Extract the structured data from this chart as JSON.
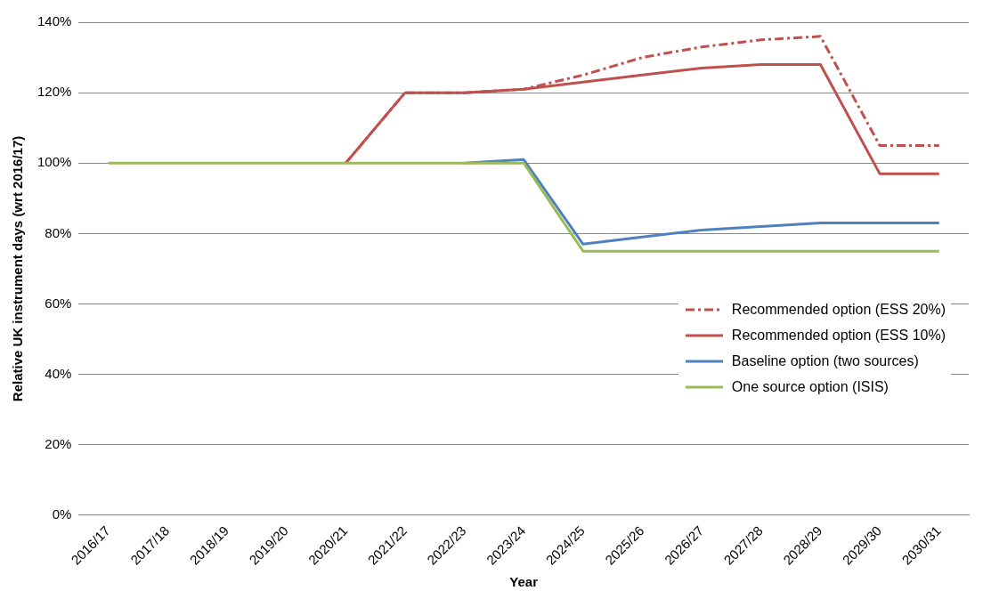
{
  "chart_data": {
    "type": "line",
    "xlabel": "Year",
    "ylabel": "Relative UK instrument days (wrt 2016/17)",
    "categories": [
      "2016/17",
      "2017/18",
      "2018/19",
      "2019/20",
      "2020/21",
      "2021/22",
      "2022/23",
      "2023/24",
      "2024/25",
      "2025/26",
      "2026/27",
      "2027/28",
      "2028/29",
      "2029/30",
      "2030/31"
    ],
    "series": [
      {
        "name": "Recommended option (ESS 20%)",
        "color": "#c0504d",
        "line_style": "dashed",
        "values": [
          null,
          null,
          null,
          null,
          100,
          120,
          120,
          121,
          125,
          130,
          133,
          135,
          136,
          105,
          105
        ]
      },
      {
        "name": "Recommended option (ESS 10%)",
        "color": "#c0504d",
        "values": [
          null,
          null,
          null,
          null,
          100,
          120,
          120,
          121,
          123,
          125,
          127,
          128,
          128,
          97,
          97
        ]
      },
      {
        "name": "Baseline option (two sources)",
        "color": "#4f81bd",
        "values": [
          null,
          null,
          null,
          null,
          null,
          null,
          100,
          101,
          77,
          79,
          81,
          82,
          83,
          83,
          83
        ]
      },
      {
        "name": "One source option (ISIS)",
        "color": "#9bbb59",
        "values": [
          100,
          100,
          100,
          100,
          100,
          100,
          100,
          100,
          75,
          75,
          75,
          75,
          75,
          75,
          75
        ]
      }
    ],
    "ylim": [
      0,
      140
    ],
    "yticks": [
      {
        "value": 0,
        "label": "0%"
      },
      {
        "value": 20,
        "label": "20%"
      },
      {
        "value": 40,
        "label": "40%"
      },
      {
        "value": 60,
        "label": "60%"
      },
      {
        "value": 80,
        "label": "80%"
      },
      {
        "value": 100,
        "label": "100%"
      },
      {
        "value": 120,
        "label": "120%"
      },
      {
        "value": 140,
        "label": "140%"
      }
    ],
    "grid": "y",
    "legend": "right",
    "marker": "none",
    "line_style": "solid"
  }
}
